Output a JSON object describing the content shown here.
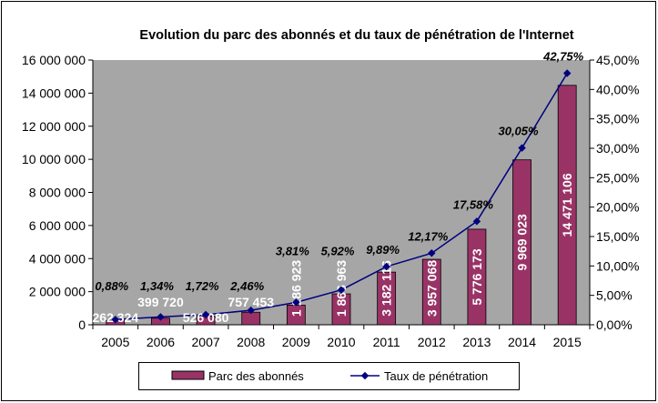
{
  "chart_data": {
    "type": "bar+line",
    "title": "Evolution du parc des abonnés et du taux de pénétration de l'Internet",
    "categories": [
      "2005",
      "2006",
      "2007",
      "2008",
      "2009",
      "2010",
      "2011",
      "2012",
      "2013",
      "2014",
      "2015"
    ],
    "series": [
      {
        "name": "Parc des abonnés",
        "type": "bar",
        "axis": "left",
        "color": "#993366",
        "values": [
          262324,
          399720,
          526080,
          757453,
          1186923,
          1866963,
          3182116,
          3957068,
          5776173,
          9969023,
          14471106
        ],
        "labels": [
          "262 324",
          "399 720",
          "526 080",
          "757 453",
          "1 186 923",
          "1 866 963",
          "3 182 116",
          "3 957 068",
          "5 776 173",
          "9 969 023",
          "14 471 106"
        ]
      },
      {
        "name": "Taux de pénétration",
        "type": "line",
        "axis": "right",
        "color": "#000080",
        "values": [
          0.88,
          1.34,
          1.72,
          2.46,
          3.81,
          5.92,
          9.89,
          12.17,
          17.58,
          30.05,
          42.75
        ],
        "labels": [
          "0,88%",
          "1,34%",
          "1,72%",
          "2,46%",
          "3,81%",
          "5,92%",
          "9,89%",
          "12,17%",
          "17,58%",
          "30,05%",
          "42,75%"
        ]
      }
    ],
    "ylim_left": [
      0,
      16000000
    ],
    "yticks_left": [
      "0",
      "2 000 000",
      "4 000 000",
      "6 000 000",
      "8 000 000",
      "10 000 000",
      "12 000 000",
      "14 000 000",
      "16 000 000"
    ],
    "ylim_right": [
      0,
      45
    ],
    "yticks_right": [
      "0,00%",
      "5,00%",
      "10,00%",
      "15,00%",
      "20,00%",
      "25,00%",
      "30,00%",
      "35,00%",
      "40,00%",
      "45,00%"
    ],
    "plot_background": "#a6a6a6",
    "grid": false,
    "legend": "bottom"
  }
}
